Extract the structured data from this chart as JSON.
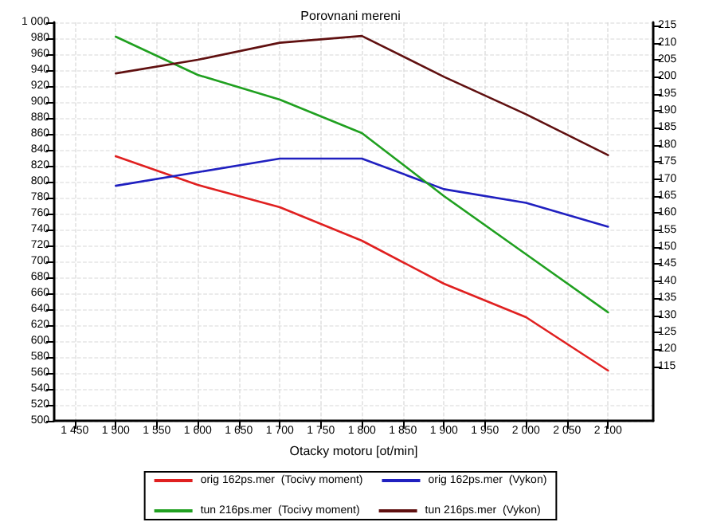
{
  "chart_data": {
    "type": "line",
    "title": "Porovnani mereni",
    "xlabel": "Otacky motoru [ot/min]",
    "x": [
      1500,
      1600,
      1700,
      1800,
      1900,
      2000,
      2100
    ],
    "series": [
      {
        "name": "orig 162ps.mer  (Tocivy moment)",
        "color": "#e02020",
        "values": [
          832,
          796,
          768,
          726,
          672,
          630,
          563
        ]
      },
      {
        "name": "orig 162ps.mer  (Vykon)",
        "color": "#2020c0",
        "axis": "y2",
        "values": [
          168,
          172,
          176,
          176,
          167,
          163,
          156
        ]
      },
      {
        "name": "tun 216ps.mer  (Tocivy moment)",
        "color": "#20a020",
        "values": [
          982,
          934,
          903,
          861,
          782,
          709,
          636
        ]
      },
      {
        "name": "tun 216ps.mer  (Vykon)",
        "color": "#601010",
        "axis": "y2",
        "values": [
          201,
          205,
          210,
          212,
          200,
          189,
          177
        ]
      }
    ],
    "xlim": [
      1425,
      2155
    ],
    "xticks": [
      {
        "value": 1450,
        "label": "1 450"
      },
      {
        "value": 1500,
        "label": "1 500"
      },
      {
        "value": 1550,
        "label": "1 550"
      },
      {
        "value": 1600,
        "label": "1 600"
      },
      {
        "value": 1650,
        "label": "1 650"
      },
      {
        "value": 1700,
        "label": "1 700"
      },
      {
        "value": 1750,
        "label": "1 750"
      },
      {
        "value": 1800,
        "label": "1 800"
      },
      {
        "value": 1850,
        "label": "1 850"
      },
      {
        "value": 1900,
        "label": "1 900"
      },
      {
        "value": 1950,
        "label": "1 950"
      },
      {
        "value": 2000,
        "label": "2 000"
      },
      {
        "value": 2050,
        "label": "2 050"
      },
      {
        "value": 2100,
        "label": "2 100"
      }
    ],
    "ylim": [
      500,
      1000
    ],
    "yticks": [
      500,
      520,
      540,
      560,
      580,
      600,
      620,
      640,
      660,
      680,
      700,
      720,
      740,
      760,
      780,
      800,
      820,
      840,
      860,
      880,
      900,
      920,
      940,
      960,
      980,
      {
        "value": 1000,
        "label": "1 000"
      }
    ],
    "y2lim": [
      99,
      216
    ],
    "y2ticks": [
      115,
      120,
      125,
      130,
      135,
      140,
      145,
      150,
      155,
      160,
      165,
      170,
      175,
      180,
      185,
      190,
      195,
      200,
      205,
      210,
      215
    ],
    "grid": true,
    "legend": "bottom",
    "marker": "none",
    "line_style": "solid"
  }
}
